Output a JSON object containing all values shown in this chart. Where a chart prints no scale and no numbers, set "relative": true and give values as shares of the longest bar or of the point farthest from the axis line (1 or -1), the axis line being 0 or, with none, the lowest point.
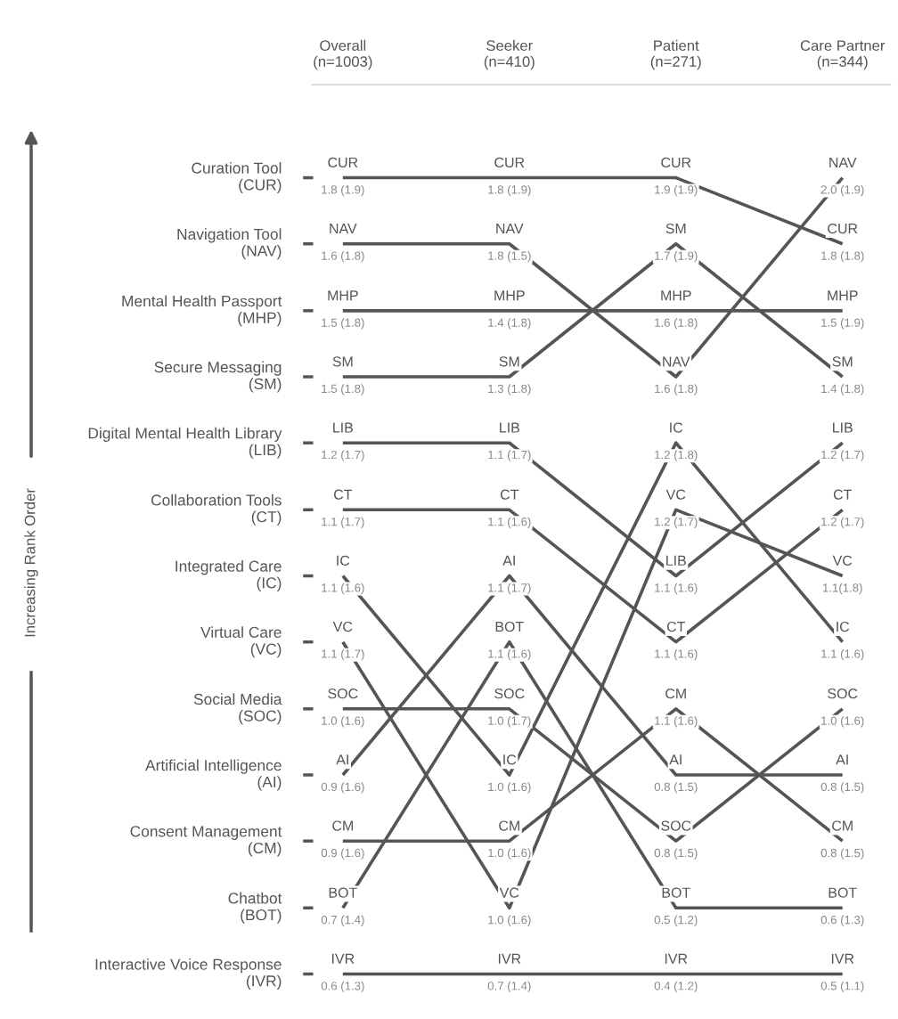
{
  "chart_data": {
    "type": "line",
    "relative": true,
    "legend": "left",
    "categories": [
      "Overall\n(n=1003)",
      "Seeker\n(n=410)",
      "Patient\n(n=271)",
      "Care Partner\n(n=344)"
    ],
    "series": [
      {
        "name": "Curation Tool\n(CUR)",
        "color": "#555555",
        "values": [
          1,
          1,
          1,
          0.917
        ]
      },
      {
        "name": "Navigation Tool\n(NAV)",
        "color": "#555555",
        "values": [
          0.917,
          0.917,
          0.75,
          1
        ]
      },
      {
        "name": "Mental Health Passport\n(MHP)",
        "color": "#555555",
        "values": [
          0.833,
          0.833,
          0.833,
          0.833
        ]
      },
      {
        "name": "Secure Messaging\n(SM)",
        "color": "#555555",
        "values": [
          0.75,
          0.75,
          0.917,
          0.75
        ]
      },
      {
        "name": "Digital Mental Health Library\n(LIB)",
        "color": "#555555",
        "values": [
          0.667,
          0.667,
          0.5,
          0.667
        ]
      },
      {
        "name": "Collaboration Tools\n(CT)",
        "color": "#555555",
        "values": [
          0.583,
          0.583,
          0.417,
          0.583
        ]
      },
      {
        "name": "Integrated Care\n(IC)",
        "color": "#555555",
        "values": [
          0.5,
          0.25,
          0.667,
          0.417
        ]
      },
      {
        "name": "Virtual Care\n(VC)",
        "color": "#555555",
        "values": [
          0.417,
          0.083,
          0.583,
          0.5
        ]
      },
      {
        "name": "Social Media\n(SOC)",
        "color": "#555555",
        "values": [
          0.333,
          0.333,
          0.167,
          0.333
        ]
      },
      {
        "name": "Artificial Intelligence\n(AI)",
        "color": "#555555",
        "values": [
          0.25,
          0.5,
          0.25,
          0.25
        ]
      },
      {
        "name": "Consent Management\n(CM)",
        "color": "#555555",
        "values": [
          0.167,
          0.167,
          0.333,
          0.167
        ]
      },
      {
        "name": "Chatbot\n(BOT)",
        "color": "#555555",
        "values": [
          0.083,
          0.417,
          0.083,
          0.083
        ]
      },
      {
        "name": "Interactive Voice Response\n(IVR)",
        "color": "#555555",
        "values": [
          0,
          0,
          0,
          0
        ]
      }
    ],
    "annotations": [
      "Increasing Rank Order",
      {
        "text": "CUR",
        "x": "Overall\n(n=1003)",
        "y": 1
      },
      {
        "text": "1.8 (1.9)",
        "x": "Overall\n(n=1003)",
        "y": 1
      },
      {
        "text": "NAV",
        "x": "Overall\n(n=1003)",
        "y": 0.917
      },
      {
        "text": "1.6 (1.8)",
        "x": "Overall\n(n=1003)",
        "y": 0.917
      },
      {
        "text": "MHP",
        "x": "Overall\n(n=1003)",
        "y": 0.833
      },
      {
        "text": "1.5 (1.8)",
        "x": "Overall\n(n=1003)",
        "y": 0.833
      },
      {
        "text": "SM",
        "x": "Overall\n(n=1003)",
        "y": 0.75
      },
      {
        "text": "1.5 (1.8)",
        "x": "Overall\n(n=1003)",
        "y": 0.75
      },
      {
        "text": "LIB",
        "x": "Overall\n(n=1003)",
        "y": 0.667
      },
      {
        "text": "1.2 (1.7)",
        "x": "Overall\n(n=1003)",
        "y": 0.667
      },
      {
        "text": "CT",
        "x": "Overall\n(n=1003)",
        "y": 0.583
      },
      {
        "text": "1.1 (1.7)",
        "x": "Overall\n(n=1003)",
        "y": 0.583
      },
      {
        "text": "IC",
        "x": "Overall\n(n=1003)",
        "y": 0.5
      },
      {
        "text": "1.1 (1.6)",
        "x": "Overall\n(n=1003)",
        "y": 0.5
      },
      {
        "text": "VC",
        "x": "Overall\n(n=1003)",
        "y": 0.417
      },
      {
        "text": "1.1 (1.7)",
        "x": "Overall\n(n=1003)",
        "y": 0.417
      },
      {
        "text": "SOC",
        "x": "Overall\n(n=1003)",
        "y": 0.333
      },
      {
        "text": "1.0 (1.6)",
        "x": "Overall\n(n=1003)",
        "y": 0.333
      },
      {
        "text": "AI",
        "x": "Overall\n(n=1003)",
        "y": 0.25
      },
      {
        "text": "0.9 (1.6)",
        "x": "Overall\n(n=1003)",
        "y": 0.25
      },
      {
        "text": "CM",
        "x": "Overall\n(n=1003)",
        "y": 0.167
      },
      {
        "text": "0.9 (1.6)",
        "x": "Overall\n(n=1003)",
        "y": 0.167
      },
      {
        "text": "BOT",
        "x": "Overall\n(n=1003)",
        "y": 0.083
      },
      {
        "text": "0.7 (1.4)",
        "x": "Overall\n(n=1003)",
        "y": 0.083
      },
      {
        "text": "IVR",
        "x": "Overall\n(n=1003)",
        "y": 0
      },
      {
        "text": "0.6 (1.3)",
        "x": "Overall\n(n=1003)",
        "y": 0
      },
      {
        "text": "CUR",
        "x": "Seeker\n(n=410)",
        "y": 1
      },
      {
        "text": "1.8 (1.9)",
        "x": "Seeker\n(n=410)",
        "y": 1
      },
      {
        "text": "NAV",
        "x": "Seeker\n(n=410)",
        "y": 0.917
      },
      {
        "text": "1.8 (1.5)",
        "x": "Seeker\n(n=410)",
        "y": 0.917
      },
      {
        "text": "MHP",
        "x": "Seeker\n(n=410)",
        "y": 0.833
      },
      {
        "text": "1.4 (1.8)",
        "x": "Seeker\n(n=410)",
        "y": 0.833
      },
      {
        "text": "SM",
        "x": "Seeker\n(n=410)",
        "y": 0.75
      },
      {
        "text": "1.3 (1.8)",
        "x": "Seeker\n(n=410)",
        "y": 0.75
      },
      {
        "text": "LIB",
        "x": "Seeker\n(n=410)",
        "y": 0.667
      },
      {
        "text": "1.1 (1.7)",
        "x": "Seeker\n(n=410)",
        "y": 0.667
      },
      {
        "text": "CT",
        "x": "Seeker\n(n=410)",
        "y": 0.583
      },
      {
        "text": "1.1 (1.6)",
        "x": "Seeker\n(n=410)",
        "y": 0.583
      },
      {
        "text": "AI",
        "x": "Seeker\n(n=410)",
        "y": 0.5
      },
      {
        "text": "1.1 (1.7)",
        "x": "Seeker\n(n=410)",
        "y": 0.5
      },
      {
        "text": "BOT",
        "x": "Seeker\n(n=410)",
        "y": 0.417
      },
      {
        "text": "1.1 (1.6)",
        "x": "Seeker\n(n=410)",
        "y": 0.417
      },
      {
        "text": "SOC",
        "x": "Seeker\n(n=410)",
        "y": 0.333
      },
      {
        "text": "1.0 (1.7)",
        "x": "Seeker\n(n=410)",
        "y": 0.333
      },
      {
        "text": "IC",
        "x": "Seeker\n(n=410)",
        "y": 0.25
      },
      {
        "text": "1.0 (1.6)",
        "x": "Seeker\n(n=410)",
        "y": 0.25
      },
      {
        "text": "CM",
        "x": "Seeker\n(n=410)",
        "y": 0.167
      },
      {
        "text": "1.0 (1.6)",
        "x": "Seeker\n(n=410)",
        "y": 0.167
      },
      {
        "text": "VC",
        "x": "Seeker\n(n=410)",
        "y": 0.083
      },
      {
        "text": "1.0 (1.6)",
        "x": "Seeker\n(n=410)",
        "y": 0.083
      },
      {
        "text": "IVR",
        "x": "Seeker\n(n=410)",
        "y": 0
      },
      {
        "text": "0.7 (1.4)",
        "x": "Seeker\n(n=410)",
        "y": 0
      },
      {
        "text": "CUR",
        "x": "Patient\n(n=271)",
        "y": 1
      },
      {
        "text": "1.9 (1.9)",
        "x": "Patient\n(n=271)",
        "y": 1
      },
      {
        "text": "SM",
        "x": "Patient\n(n=271)",
        "y": 0.917
      },
      {
        "text": "1.7 (1.9)",
        "x": "Patient\n(n=271)",
        "y": 0.917
      },
      {
        "text": "MHP",
        "x": "Patient\n(n=271)",
        "y": 0.833
      },
      {
        "text": "1.6 (1.8)",
        "x": "Patient\n(n=271)",
        "y": 0.833
      },
      {
        "text": "NAV",
        "x": "Patient\n(n=271)",
        "y": 0.75
      },
      {
        "text": "1.6 (1.8)",
        "x": "Patient\n(n=271)",
        "y": 0.75
      },
      {
        "text": "IC",
        "x": "Patient\n(n=271)",
        "y": 0.667
      },
      {
        "text": "1.2 (1.8)",
        "x": "Patient\n(n=271)",
        "y": 0.667
      },
      {
        "text": "VC",
        "x": "Patient\n(n=271)",
        "y": 0.583
      },
      {
        "text": "1.2 (1.7)",
        "x": "Patient\n(n=271)",
        "y": 0.583
      },
      {
        "text": "LIB",
        "x": "Patient\n(n=271)",
        "y": 0.5
      },
      {
        "text": "1.1 (1.6)",
        "x": "Patient\n(n=271)",
        "y": 0.5
      },
      {
        "text": "CT",
        "x": "Patient\n(n=271)",
        "y": 0.417
      },
      {
        "text": "1.1 (1.6)",
        "x": "Patient\n(n=271)",
        "y": 0.417
      },
      {
        "text": "CM",
        "x": "Patient\n(n=271)",
        "y": 0.333
      },
      {
        "text": "1.1 (1.6)",
        "x": "Patient\n(n=271)",
        "y": 0.333
      },
      {
        "text": "AI",
        "x": "Patient\n(n=271)",
        "y": 0.25
      },
      {
        "text": "0.8 (1.5)",
        "x": "Patient\n(n=271)",
        "y": 0.25
      },
      {
        "text": "SOC",
        "x": "Patient\n(n=271)",
        "y": 0.167
      },
      {
        "text": "0.8 (1.5)",
        "x": "Patient\n(n=271)",
        "y": 0.167
      },
      {
        "text": "BOT",
        "x": "Patient\n(n=271)",
        "y": 0.083
      },
      {
        "text": "0.5 (1.2)",
        "x": "Patient\n(n=271)",
        "y": 0.083
      },
      {
        "text": "IVR",
        "x": "Patient\n(n=271)",
        "y": 0
      },
      {
        "text": "0.4 (1.2)",
        "x": "Patient\n(n=271)",
        "y": 0
      },
      {
        "text": "NAV",
        "x": "Care Partner\n(n=344)",
        "y": 1
      },
      {
        "text": "2.0 (1.9)",
        "x": "Care Partner\n(n=344)",
        "y": 1
      },
      {
        "text": "CUR",
        "x": "Care Partner\n(n=344)",
        "y": 0.917
      },
      {
        "text": "1.8 (1.8)",
        "x": "Care Partner\n(n=344)",
        "y": 0.917
      },
      {
        "text": "MHP",
        "x": "Care Partner\n(n=344)",
        "y": 0.833
      },
      {
        "text": "1.5 (1.9)",
        "x": "Care Partner\n(n=344)",
        "y": 0.833
      },
      {
        "text": "SM",
        "x": "Care Partner\n(n=344)",
        "y": 0.75
      },
      {
        "text": "1.4 (1.8)",
        "x": "Care Partner\n(n=344)",
        "y": 0.75
      },
      {
        "text": "LIB",
        "x": "Care Partner\n(n=344)",
        "y": 0.667
      },
      {
        "text": "1.2 (1.7)",
        "x": "Care Partner\n(n=344)",
        "y": 0.667
      },
      {
        "text": "CT",
        "x": "Care Partner\n(n=344)",
        "y": 0.583
      },
      {
        "text": "1.2 (1.7)",
        "x": "Care Partner\n(n=344)",
        "y": 0.583
      },
      {
        "text": "VC",
        "x": "Care Partner\n(n=344)",
        "y": 0.5
      },
      {
        "text": "1.1(1.8)",
        "x": "Care Partner\n(n=344)",
        "y": 0.5
      },
      {
        "text": "IC",
        "x": "Care Partner\n(n=344)",
        "y": 0.417
      },
      {
        "text": "1.1 (1.6)",
        "x": "Care Partner\n(n=344)",
        "y": 0.417
      },
      {
        "text": "SOC",
        "x": "Care Partner\n(n=344)",
        "y": 0.333
      },
      {
        "text": "1.0 (1.6)",
        "x": "Care Partner\n(n=344)",
        "y": 0.333
      },
      {
        "text": "AI",
        "x": "Care Partner\n(n=344)",
        "y": 0.25
      },
      {
        "text": "0.8 (1.5)",
        "x": "Care Partner\n(n=344)",
        "y": 0.25
      },
      {
        "text": "CM",
        "x": "Care Partner\n(n=344)",
        "y": 0.167
      },
      {
        "text": "0.8 (1.5)",
        "x": "Care Partner\n(n=344)",
        "y": 0.167
      },
      {
        "text": "BOT",
        "x": "Care Partner\n(n=344)",
        "y": 0.083
      },
      {
        "text": "0.6 (1.3)",
        "x": "Care Partner\n(n=344)",
        "y": 0.083
      },
      {
        "text": "IVR",
        "x": "Care Partner\n(n=344)",
        "y": 0
      },
      {
        "text": "0.5 (1.1)",
        "x": "Care Partner\n(n=344)",
        "y": 0
      }
    ]
  }
}
